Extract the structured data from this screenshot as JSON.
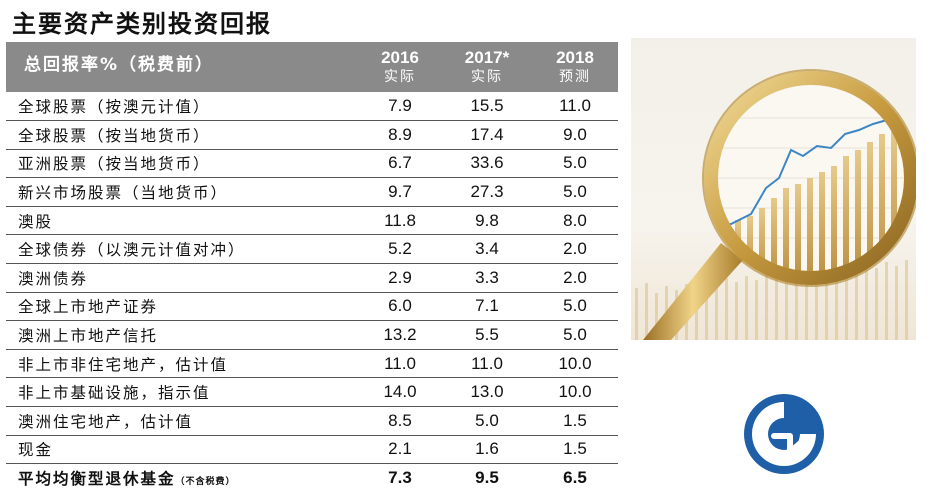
{
  "title": "主要资产类别投资回报",
  "table": {
    "header": {
      "label": "总回报率%（税费前）",
      "cols": [
        {
          "year": "2016",
          "sub": "实际"
        },
        {
          "year": "2017*",
          "sub": "实际"
        },
        {
          "year": "2018",
          "sub": "预测"
        }
      ]
    },
    "rows": [
      {
        "name": "全球股票（按澳元计值）",
        "v2016": "7.9",
        "v2017": "15.5",
        "v2018": "11.0"
      },
      {
        "name": "全球股票（按当地货币）",
        "v2016": "8.9",
        "v2017": "17.4",
        "v2018": "9.0"
      },
      {
        "name": "亚洲股票（按当地货币）",
        "v2016": "6.7",
        "v2017": "33.6",
        "v2018": "5.0"
      },
      {
        "name": "新兴市场股票（当地货币）",
        "v2016": "9.7",
        "v2017": "27.3",
        "v2018": "5.0"
      },
      {
        "name": "澳股",
        "v2016": "11.8",
        "v2017": "9.8",
        "v2018": "8.0"
      },
      {
        "name": "全球债券（以澳元计值对冲）",
        "v2016": "5.2",
        "v2017": "3.4",
        "v2018": "2.0"
      },
      {
        "name": "澳洲债券",
        "v2016": "2.9",
        "v2017": "3.3",
        "v2018": "2.0"
      },
      {
        "name": "全球上市地产证券",
        "v2016": "6.0",
        "v2017": "7.1",
        "v2018": "5.0"
      },
      {
        "name": "澳洲上市地产信托",
        "v2016": "13.2",
        "v2017": "5.5",
        "v2018": "5.0"
      },
      {
        "name": "非上市非住宅地产，估计值",
        "v2016": "11.0",
        "v2017": "11.0",
        "v2018": "10.0"
      },
      {
        "name": "非上市基础设施，指示值",
        "v2016": "14.0",
        "v2017": "13.0",
        "v2018": "10.0"
      },
      {
        "name": "澳洲住宅地产，估计值",
        "v2016": "8.5",
        "v2017": "5.0",
        "v2018": "1.5"
      },
      {
        "name": "现金",
        "v2016": "2.1",
        "v2017": "1.6",
        "v2018": "1.5"
      }
    ],
    "total": {
      "name": "平均均衡型退休基金",
      "note": "（不含税费）",
      "v2016": "7.3",
      "v2017": "9.5",
      "v2018": "6.5"
    }
  },
  "colors": {
    "header_bg": "#8a8a8a",
    "gold": "#c9a24a",
    "logo_blue": "#1f5fa8"
  },
  "icons": {
    "photo": "magnifying-glass-chart-image",
    "logo": "company-logo"
  }
}
